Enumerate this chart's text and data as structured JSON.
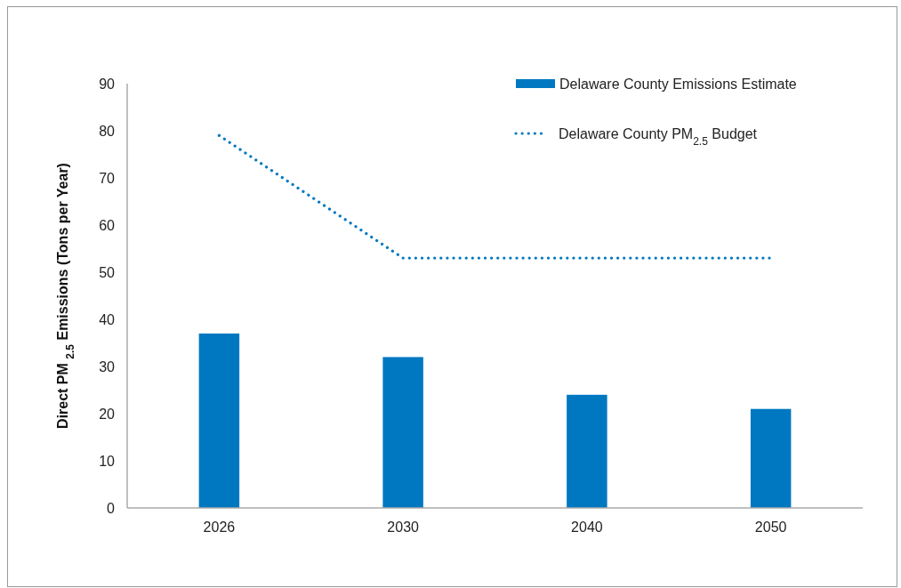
{
  "chart_data": {
    "type": "bar",
    "ylabel": "Direct PM $_{2.5}$ Emissions (Tons per Year)",
    "categories": [
      "2026",
      "2030",
      "2040",
      "2050"
    ],
    "series": [
      {
        "name": "Delaware County Emissions Estimate",
        "color": "#0078c1",
        "values": [
          37,
          32,
          24,
          21
        ]
      },
      {
        "name": "Delaware County PM$_{2.5}$ Budget",
        "type": "line",
        "color": "#0078c1",
        "line_style": "dotted",
        "values": [
          79,
          53,
          53,
          53
        ]
      }
    ],
    "ylim": [
      0,
      90
    ],
    "yticks": [
      0,
      10,
      20,
      30,
      40,
      50,
      60,
      70,
      80,
      90
    ],
    "grid": false,
    "legend": "top right"
  }
}
